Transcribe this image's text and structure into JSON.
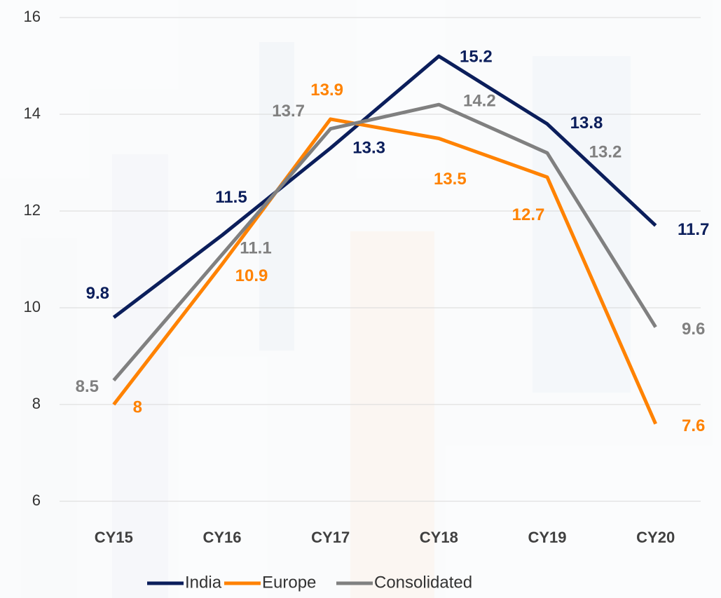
{
  "chart_data": {
    "type": "line",
    "categories": [
      "CY15",
      "CY16",
      "CY17",
      "CY18",
      "CY19",
      "CY20"
    ],
    "series": [
      {
        "name": "India",
        "color": "#0b1e5b",
        "values": [
          9.8,
          11.5,
          13.3,
          15.2,
          13.8,
          11.7
        ]
      },
      {
        "name": "Europe",
        "color": "#ff8200",
        "values": [
          8,
          10.9,
          13.9,
          13.5,
          12.7,
          7.6
        ]
      },
      {
        "name": "Consolidated",
        "color": "#808080",
        "values": [
          8.5,
          11.1,
          13.7,
          14.2,
          13.2,
          9.6
        ]
      }
    ],
    "ylim": [
      6,
      16
    ],
    "yticks": [
      6,
      8,
      10,
      12,
      14,
      16
    ],
    "grid": true,
    "legend": "bottom"
  }
}
